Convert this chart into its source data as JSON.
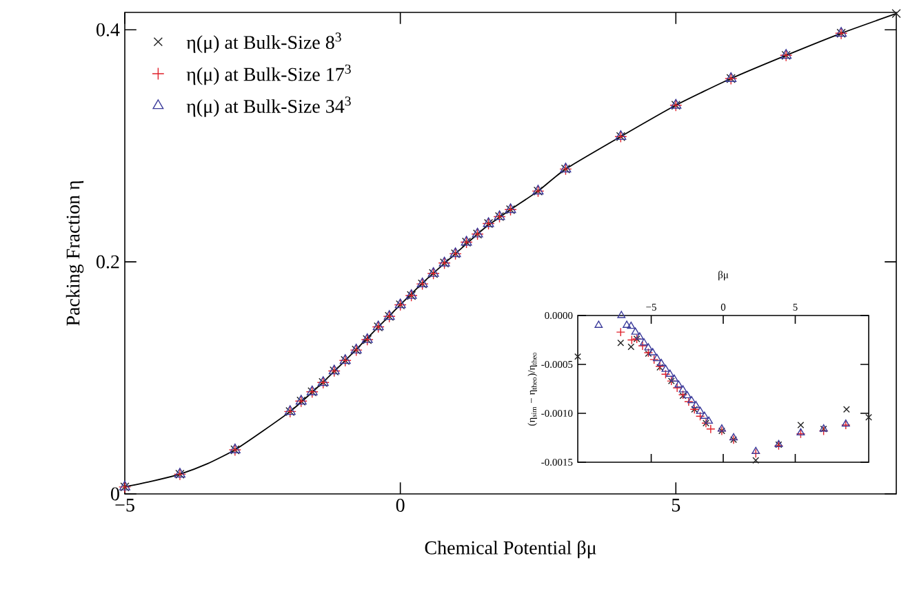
{
  "chart_data": [
    {
      "type": "scatter",
      "xlabel": "Chemical Potential βμ",
      "ylabel": "Packing Fraction η",
      "xlim": [
        -5,
        9
      ],
      "ylim": [
        0,
        0.415
      ],
      "xticks": [
        {
          "value": -5,
          "label": "−5"
        },
        0,
        5
      ],
      "yticks": [
        0,
        0.2,
        0.4
      ],
      "grid": false,
      "legend": "top left",
      "series": [
        {
          "type": "line",
          "color": "#000000",
          "marker": "none",
          "line_style": "solid",
          "x": [
            -5,
            -4.5,
            -4,
            -3.5,
            -3,
            -2.5,
            -2,
            -1.5,
            -1,
            -0.5,
            0,
            0.5,
            1,
            1.5,
            2,
            2.5,
            3,
            4,
            5,
            6,
            7,
            8,
            9
          ],
          "values": [
            0.006,
            0.011,
            0.017,
            0.026,
            0.038,
            0.054,
            0.071,
            0.092,
            0.115,
            0.139,
            0.163,
            0.186,
            0.207,
            0.228,
            0.245,
            0.261,
            0.28,
            0.308,
            0.335,
            0.358,
            0.378,
            0.397,
            0.414
          ]
        },
        {
          "name": "η(μ) at Bulk-Size 8$^{3}$",
          "color": "#222222",
          "marker": "cross",
          "x": [
            -5,
            -4,
            -3,
            -2,
            -1.8,
            -1.6,
            -1.4,
            -1.2,
            -1,
            -0.8,
            -0.6,
            -0.4,
            -0.2,
            0,
            0.2,
            0.4,
            0.6,
            0.8,
            1,
            1.2,
            1.4,
            1.6,
            1.8,
            2,
            2.5,
            3,
            4,
            5,
            6,
            7,
            8,
            9
          ],
          "values": [
            0.006,
            0.017,
            0.038,
            0.071,
            0.08,
            0.088,
            0.096,
            0.106,
            0.115,
            0.124,
            0.133,
            0.144,
            0.153,
            0.163,
            0.171,
            0.181,
            0.19,
            0.199,
            0.207,
            0.217,
            0.224,
            0.233,
            0.239,
            0.245,
            0.261,
            0.28,
            0.308,
            0.335,
            0.358,
            0.378,
            0.397,
            0.414
          ]
        },
        {
          "name": "η(μ) at Bulk-Size 17$^{3}$",
          "color": "#e0202a",
          "marker": "plus",
          "x": [
            -5,
            -4,
            -3,
            -2,
            -1.8,
            -1.6,
            -1.4,
            -1.2,
            -1,
            -0.8,
            -0.6,
            -0.4,
            -0.2,
            0,
            0.2,
            0.4,
            0.6,
            0.8,
            1,
            1.2,
            1.4,
            1.6,
            1.8,
            2,
            2.5,
            3,
            4,
            5,
            6,
            7,
            8
          ],
          "values": [
            0.006,
            0.017,
            0.038,
            0.071,
            0.08,
            0.088,
            0.096,
            0.106,
            0.115,
            0.124,
            0.133,
            0.144,
            0.153,
            0.163,
            0.171,
            0.181,
            0.19,
            0.199,
            0.207,
            0.217,
            0.224,
            0.233,
            0.239,
            0.245,
            0.261,
            0.28,
            0.308,
            0.335,
            0.358,
            0.378,
            0.397
          ]
        },
        {
          "name": "η(μ) at Bulk-Size 34$^{3}$",
          "color": "#3a3a9a",
          "marker": "triangle",
          "x": [
            -5,
            -4,
            -3,
            -2,
            -1.8,
            -1.6,
            -1.4,
            -1.2,
            -1,
            -0.8,
            -0.6,
            -0.4,
            -0.2,
            0,
            0.2,
            0.4,
            0.6,
            0.8,
            1,
            1.2,
            1.4,
            1.6,
            1.8,
            2,
            2.5,
            3,
            4,
            5,
            6,
            7,
            8
          ],
          "values": [
            0.006,
            0.017,
            0.038,
            0.071,
            0.08,
            0.088,
            0.096,
            0.106,
            0.115,
            0.124,
            0.133,
            0.144,
            0.153,
            0.163,
            0.171,
            0.181,
            0.19,
            0.199,
            0.207,
            0.217,
            0.224,
            0.233,
            0.239,
            0.245,
            0.261,
            0.28,
            0.308,
            0.335,
            0.358,
            0.378,
            0.397
          ]
        }
      ]
    },
    {
      "type": "scatter",
      "xlabel": "βμ",
      "ylabel": "(η$_{sim}$ − η$_{theo}$)/η$_{theo}$",
      "xlim": [
        -10.1,
        10.1
      ],
      "ylim": [
        -0.0015,
        0
      ],
      "xticks": [
        {
          "value": -5,
          "label": "−5"
        },
        0,
        5
      ],
      "yticks": [
        {
          "value": -0.0015,
          "label": "-0.0015"
        },
        {
          "value": -0.001,
          "label": "-0.0010"
        },
        {
          "value": -0.0005,
          "label": "-0.0005"
        },
        {
          "value": 0,
          "label": "0.0000"
        }
      ],
      "grid": false,
      "legend": false,
      "series": [
        {
          "color": "#222222",
          "marker": "cross",
          "x": [
            -10.1,
            -7.12,
            -6.4,
            -6.0,
            -5.2,
            -4.4,
            -3.6,
            -2.8,
            -2.0,
            -1.2,
            -0.1,
            0.72,
            2.26,
            3.85,
            5.38,
            6.97,
            8.56,
            10.1
          ],
          "values": [
            -0.00042,
            -0.00028,
            -0.00032,
            -0.00024,
            -0.00039,
            -0.00053,
            -0.00067,
            -0.00082,
            -0.00096,
            -0.0011,
            -0.00118,
            -0.00127,
            -0.00148,
            -0.00132,
            -0.00112,
            -0.00116,
            -0.00096,
            -0.00104
          ]
        },
        {
          "color": "#e0202a",
          "marker": "plus",
          "x": [
            -7.12,
            -6.35,
            -6.0,
            -5.6,
            -5.2,
            -4.8,
            -4.4,
            -4.0,
            -3.6,
            -3.2,
            -2.8,
            -2.4,
            -2.0,
            -1.6,
            -1.2,
            -0.87,
            -0.1,
            0.72,
            2.26,
            3.85,
            5.38,
            6.97,
            8.51
          ],
          "values": [
            -0.00017,
            -0.00025,
            -0.00024,
            -0.00031,
            -0.00038,
            -0.00045,
            -0.00052,
            -0.0006,
            -0.00067,
            -0.00074,
            -0.00081,
            -0.00088,
            -0.00096,
            -0.00103,
            -0.0011,
            -0.00116,
            -0.00118,
            -0.00127,
            -0.00141,
            -0.00133,
            -0.00121,
            -0.00118,
            -0.00112
          ]
        },
        {
          "color": "#3a3a9a",
          "marker": "triangle",
          "x": [
            -8.65,
            -7.07,
            -6.7,
            -6.4,
            -6.1,
            -5.8,
            -5.5,
            -5.2,
            -4.9,
            -4.6,
            -4.3,
            -4.0,
            -3.7,
            -3.4,
            -3.1,
            -2.8,
            -2.5,
            -2.2,
            -1.9,
            -1.6,
            -1.3,
            -1.0,
            -0.1,
            0.72,
            2.26,
            3.85,
            5.38,
            6.97,
            8.51
          ],
          "values": [
            -0.0001,
            0,
            -0.0001,
            -0.00011,
            -0.00017,
            -0.00022,
            -0.00028,
            -0.00033,
            -0.00038,
            -0.00044,
            -0.00049,
            -0.00055,
            -0.0006,
            -0.00065,
            -0.00071,
            -0.00076,
            -0.00082,
            -0.00087,
            -0.00092,
            -0.00098,
            -0.00103,
            -0.00108,
            -0.00116,
            -0.00125,
            -0.00139,
            -0.00132,
            -0.0012,
            -0.00116,
            -0.00111
          ]
        }
      ]
    }
  ]
}
